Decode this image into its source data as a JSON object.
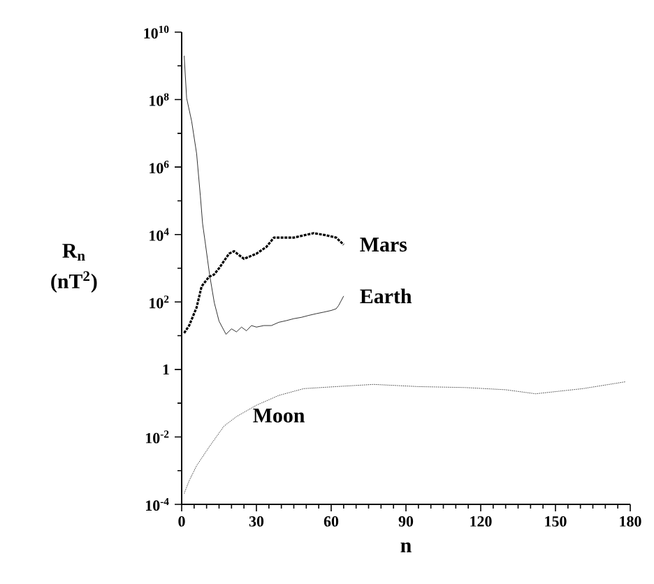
{
  "chart_data": {
    "type": "line",
    "xlabel": "n",
    "ylabel": "R$_{n}$ (nT$^{2}$)",
    "log": "y",
    "xlim": [
      0,
      180
    ],
    "ylim": [
      0.0001,
      10000000000
    ],
    "xticks": [
      0,
      {
        "value": 5,
        "label": null
      },
      {
        "value": 10,
        "label": null
      },
      {
        "value": 15,
        "label": null
      },
      {
        "value": 20,
        "label": null
      },
      {
        "value": 25,
        "label": null
      },
      30,
      {
        "value": 35,
        "label": null
      },
      {
        "value": 40,
        "label": null
      },
      {
        "value": 45,
        "label": null
      },
      {
        "value": 50,
        "label": null
      },
      {
        "value": 55,
        "label": null
      },
      60,
      {
        "value": 65,
        "label": null
      },
      {
        "value": 70,
        "label": null
      },
      {
        "value": 75,
        "label": null
      },
      {
        "value": 80,
        "label": null
      },
      {
        "value": 85,
        "label": null
      },
      90,
      {
        "value": 95,
        "label": null
      },
      {
        "value": 100,
        "label": null
      },
      {
        "value": 105,
        "label": null
      },
      {
        "value": 110,
        "label": null
      },
      {
        "value": 115,
        "label": null
      },
      120,
      {
        "value": 125,
        "label": null
      },
      {
        "value": 130,
        "label": null
      },
      {
        "value": 135,
        "label": null
      },
      {
        "value": 140,
        "label": null
      },
      {
        "value": 145,
        "label": null
      },
      150,
      {
        "value": 155,
        "label": null
      },
      {
        "value": 160,
        "label": null
      },
      {
        "value": 165,
        "label": null
      },
      {
        "value": 170,
        "label": null
      },
      {
        "value": 175,
        "label": null
      },
      180
    ],
    "yticks": [
      {
        "value": 0.0001,
        "label": "10$^{-4}$"
      },
      {
        "value": 0.001,
        "label": null
      },
      {
        "value": 0.01,
        "label": "10$^{-2}$"
      },
      {
        "value": 0.1,
        "label": null
      },
      1,
      {
        "value": 10,
        "label": null
      },
      {
        "value": 100,
        "label": "10$^{2}$"
      },
      {
        "value": 1000,
        "label": null
      },
      {
        "value": 10000,
        "label": "10$^{4}$"
      },
      {
        "value": 100000,
        "label": null
      },
      {
        "value": 1000000,
        "label": "10$^{6}$"
      },
      {
        "value": 10000000,
        "label": null
      },
      {
        "value": 100000000,
        "label": "10$^{8}$"
      },
      {
        "value": 1000000000,
        "label": null
      },
      {
        "value": 10000000000,
        "label": "10$^{10}$"
      }
    ],
    "series": [
      {
        "name": "Mars",
        "color": "#000000",
        "line_style": "dashed",
        "x": [
          1,
          3,
          6,
          8,
          11,
          13,
          15,
          19,
          21,
          25,
          30,
          34,
          37,
          45,
          53,
          58,
          62,
          65
        ],
        "values": [
          12,
          20,
          69,
          290,
          560,
          650,
          1000,
          2700,
          3200,
          1900,
          2700,
          4300,
          8100,
          8100,
          11000,
          9500,
          8100,
          5000
        ]
      },
      {
        "name": "Earth",
        "color": "#000000",
        "line_style": "solid",
        "x": [
          1,
          2,
          4,
          6,
          7.5,
          8.4,
          9.4,
          11.2,
          13.1,
          15,
          17.8,
          20,
          22,
          24,
          26,
          28,
          30,
          33,
          36,
          39,
          42,
          45,
          48,
          51,
          54,
          57,
          60,
          62,
          63,
          65
        ],
        "values": [
          2000000000,
          110000000,
          23000000,
          2500000,
          140000,
          21000,
          6200,
          650,
          95,
          27,
          11,
          16,
          13,
          18,
          14,
          20,
          18,
          20,
          20,
          25,
          28,
          32,
          35,
          40,
          45,
          50,
          56,
          63,
          79,
          150
        ]
      },
      {
        "name": "Moon",
        "color": "#000000",
        "line_style": "dotted",
        "x": [
          1,
          3,
          6,
          11,
          17,
          22,
          30,
          39,
          49,
          62,
          77,
          95,
          114,
          130,
          142,
          161,
          178
        ],
        "values": [
          0.00021,
          0.0005,
          0.0014,
          0.005,
          0.021,
          0.04,
          0.087,
          0.17,
          0.27,
          0.31,
          0.36,
          0.31,
          0.29,
          0.25,
          0.19,
          0.27,
          0.43
        ]
      }
    ]
  }
}
